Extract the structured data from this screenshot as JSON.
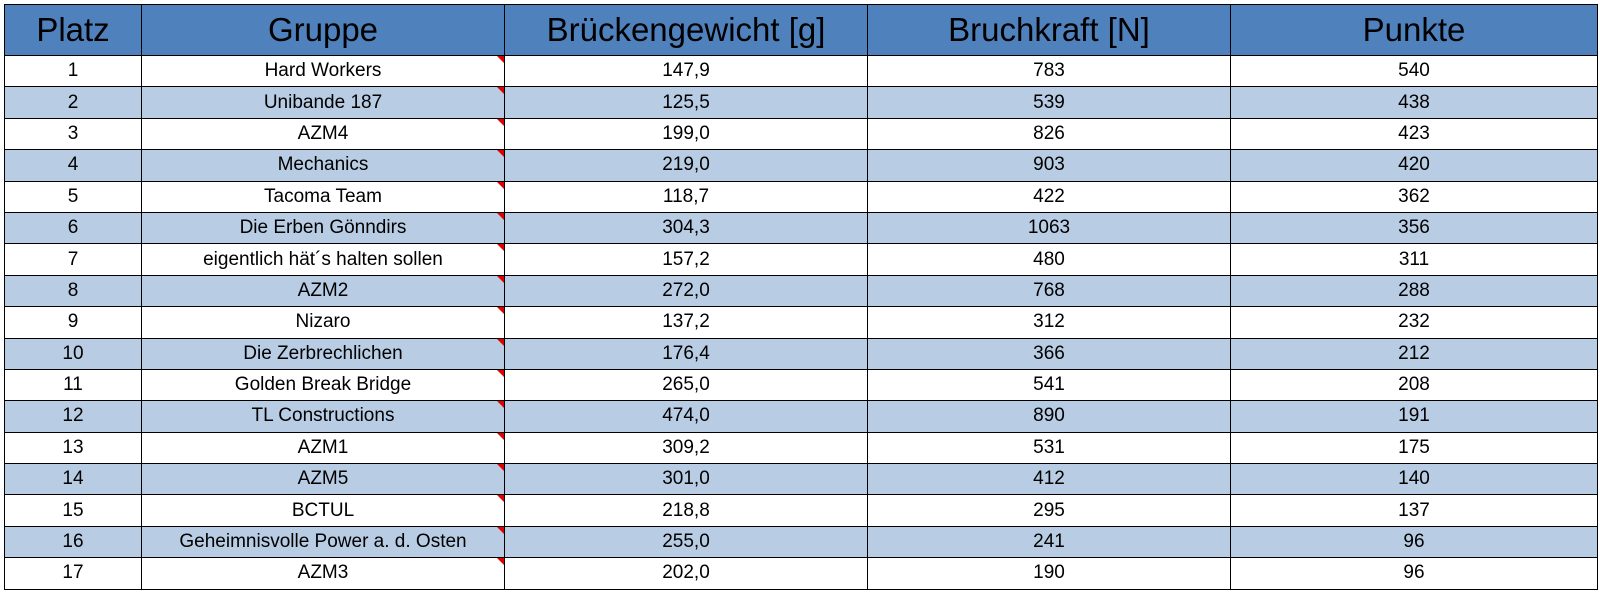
{
  "table": {
    "headers": [
      "Platz",
      "Gruppe",
      "Brückengewicht [g]",
      "Bruchkraft [N]",
      "Punkte"
    ],
    "rows": [
      {
        "platz": "1",
        "gruppe": "Hard Workers",
        "gewicht": "147,9",
        "kraft": "783",
        "punkte": "540"
      },
      {
        "platz": "2",
        "gruppe": "Unibande 187",
        "gewicht": "125,5",
        "kraft": "539",
        "punkte": "438"
      },
      {
        "platz": "3",
        "gruppe": "AZM4",
        "gewicht": "199,0",
        "kraft": "826",
        "punkte": "423"
      },
      {
        "platz": "4",
        "gruppe": "Mechanics",
        "gewicht": "219,0",
        "kraft": "903",
        "punkte": "420"
      },
      {
        "platz": "5",
        "gruppe": "Tacoma Team",
        "gewicht": "118,7",
        "kraft": "422",
        "punkte": "362"
      },
      {
        "platz": "6",
        "gruppe": "Die Erben Gönndirs",
        "gewicht": "304,3",
        "kraft": "1063",
        "punkte": "356"
      },
      {
        "platz": "7",
        "gruppe": "eigentlich hät´s halten sollen",
        "gewicht": "157,2",
        "kraft": "480",
        "punkte": "311"
      },
      {
        "platz": "8",
        "gruppe": "AZM2",
        "gewicht": "272,0",
        "kraft": "768",
        "punkte": "288"
      },
      {
        "platz": "9",
        "gruppe": "Nizaro",
        "gewicht": "137,2",
        "kraft": "312",
        "punkte": "232"
      },
      {
        "platz": "10",
        "gruppe": "Die Zerbrechlichen",
        "gewicht": "176,4",
        "kraft": "366",
        "punkte": "212"
      },
      {
        "platz": "11",
        "gruppe": "Golden Break Bridge",
        "gewicht": "265,0",
        "kraft": "541",
        "punkte": "208"
      },
      {
        "platz": "12",
        "gruppe": "TL Constructions",
        "gewicht": "474,0",
        "kraft": "890",
        "punkte": "191"
      },
      {
        "platz": "13",
        "gruppe": "AZM1",
        "gewicht": "309,2",
        "kraft": "531",
        "punkte": "175"
      },
      {
        "platz": "14",
        "gruppe": "AZM5",
        "gewicht": "301,0",
        "kraft": "412",
        "punkte": "140"
      },
      {
        "platz": "15",
        "gruppe": "BCTUL",
        "gewicht": "218,8",
        "kraft": "295",
        "punkte": "137"
      },
      {
        "platz": "16",
        "gruppe": "Geheimnisvolle Power a. d. Osten",
        "gewicht": "255,0",
        "kraft": "241",
        "punkte": "96"
      },
      {
        "platz": "17",
        "gruppe": "AZM3",
        "gewicht": "202,0",
        "kraft": "190",
        "punkte": "96"
      }
    ]
  },
  "colors": {
    "header_bg": "#4f81bd",
    "band_bg": "#b8cce4",
    "comment_marker": "#e00000"
  }
}
